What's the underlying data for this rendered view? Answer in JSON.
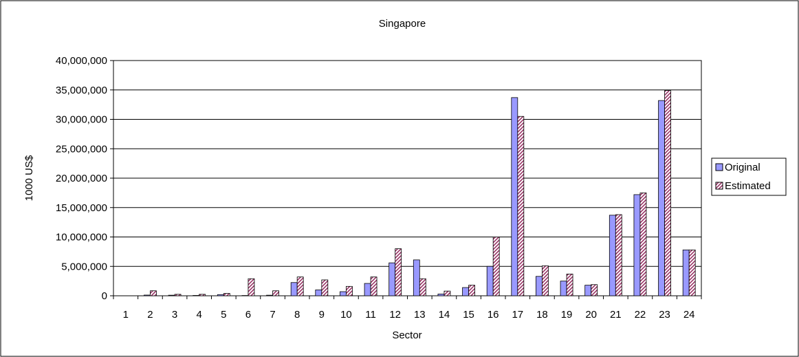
{
  "chart_data": {
    "type": "bar",
    "title": "Singapore",
    "xlabel": "Sector",
    "ylabel": "1000 US$",
    "ylim": [
      0,
      40000000
    ],
    "yticks": [
      0,
      5000000,
      10000000,
      15000000,
      20000000,
      25000000,
      30000000,
      35000000,
      40000000
    ],
    "ytick_labels": [
      "0",
      "5,000,000",
      "10,000,000",
      "15,000,000",
      "20,000,000",
      "25,000,000",
      "30,000,000",
      "35,000,000",
      "40,000,000"
    ],
    "categories": [
      "1",
      "2",
      "3",
      "4",
      "5",
      "6",
      "7",
      "8",
      "9",
      "10",
      "11",
      "12",
      "13",
      "14",
      "15",
      "16",
      "17",
      "18",
      "19",
      "20",
      "21",
      "22",
      "23",
      "24"
    ],
    "grid": true,
    "legend_position": "right",
    "series": [
      {
        "name": "Original",
        "color": "#9999ff",
        "values": [
          0,
          120000,
          100000,
          60000,
          200000,
          50000,
          100000,
          2250000,
          1000000,
          700000,
          2100000,
          5600000,
          6100000,
          300000,
          1400000,
          5000000,
          33700000,
          3300000,
          2500000,
          1800000,
          13700000,
          17200000,
          33200000,
          7800000
        ]
      },
      {
        "name": "Estimated",
        "color": "#993366",
        "values": [
          0,
          850000,
          250000,
          250000,
          400000,
          2900000,
          850000,
          3200000,
          2700000,
          1600000,
          3200000,
          8000000,
          2900000,
          800000,
          1800000,
          10000000,
          30500000,
          5100000,
          3700000,
          1900000,
          13800000,
          17500000,
          34900000,
          7800000
        ]
      }
    ]
  }
}
